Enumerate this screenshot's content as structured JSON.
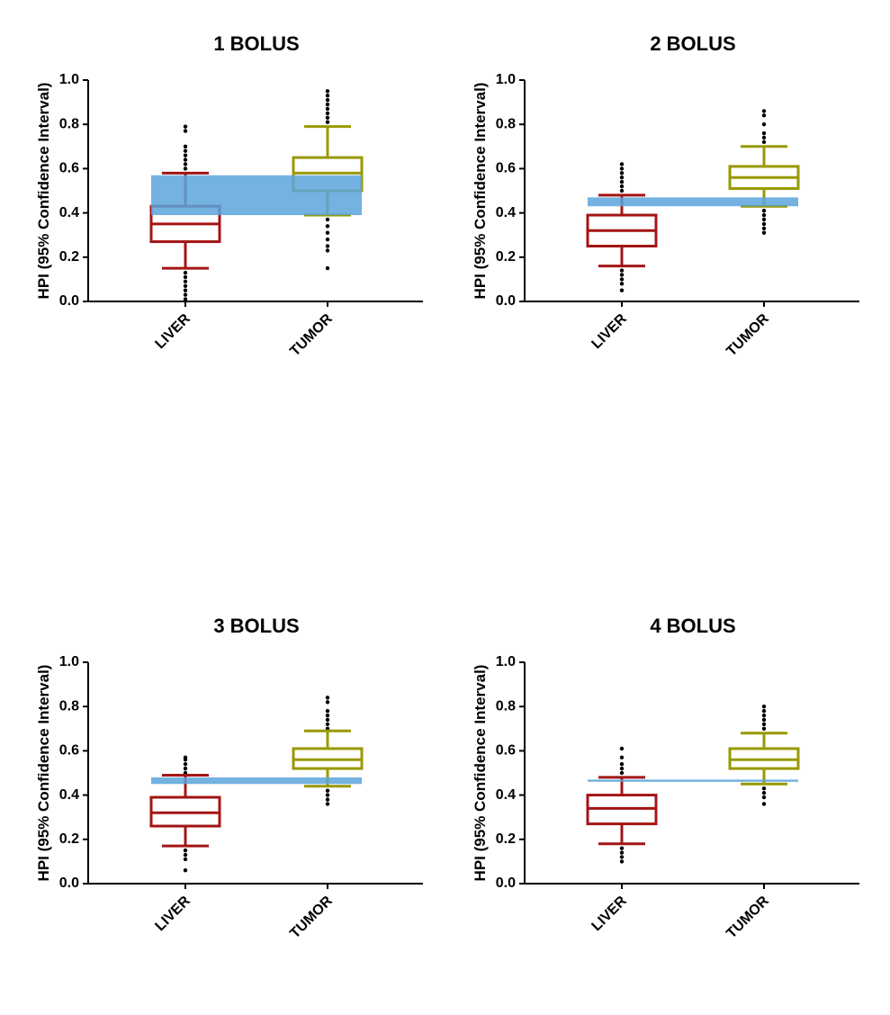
{
  "chart_data": [
    {
      "type": "box",
      "title": "1 BOLUS",
      "y_label": "HPI (95% Confidence Interval)",
      "categories": [
        "LIVER",
        "TUMOR"
      ],
      "ylim": [
        0,
        1
      ],
      "yticks": [
        {
          "value": 0,
          "label": "0.0"
        },
        {
          "value": 0.2,
          "label": "0.2"
        },
        {
          "value": 0.4,
          "label": "0.4"
        },
        {
          "value": 0.6,
          "label": "0.6"
        },
        {
          "value": 0.8,
          "label": "0.8"
        },
        {
          "value": 1,
          "label": "1.0"
        }
      ],
      "band": {
        "range": [
          0.39,
          0.57
        ],
        "color": "#5aa5dc"
      },
      "series": [
        {
          "color": "#a31515",
          "whisker_low": 0.15,
          "q1": 0.27,
          "median": 0.35,
          "q3": 0.43,
          "whisker_high": 0.58,
          "outliers": [
            0.6,
            0.62,
            0.64,
            0.66,
            0.68,
            0.7,
            0.77,
            0.79,
            0.13,
            0.11,
            0.09,
            0.07,
            0.05,
            0.03,
            0.01
          ]
        },
        {
          "color": "#999900",
          "whisker_low": 0.39,
          "q1": 0.5,
          "median": 0.58,
          "q3": 0.65,
          "whisker_high": 0.79,
          "outliers": [
            0.81,
            0.83,
            0.85,
            0.87,
            0.89,
            0.91,
            0.93,
            0.95,
            0.37,
            0.34,
            0.31,
            0.28,
            0.25,
            0.23,
            0.15
          ]
        }
      ]
    },
    {
      "type": "box",
      "title": "2 BOLUS",
      "y_label": "HPI (95% Confidence Interval)",
      "categories": [
        "LIVER",
        "TUMOR"
      ],
      "ylim": [
        0,
        1
      ],
      "yticks": [
        {
          "value": 0,
          "label": "0.0"
        },
        {
          "value": 0.2,
          "label": "0.2"
        },
        {
          "value": 0.4,
          "label": "0.4"
        },
        {
          "value": 0.6,
          "label": "0.6"
        },
        {
          "value": 0.8,
          "label": "0.8"
        },
        {
          "value": 1,
          "label": "1.0"
        }
      ],
      "band": {
        "range": [
          0.43,
          0.47
        ],
        "color": "#5aa5dc"
      },
      "series": [
        {
          "color": "#a31515",
          "whisker_low": 0.16,
          "q1": 0.25,
          "median": 0.32,
          "q3": 0.39,
          "whisker_high": 0.48,
          "outliers": [
            0.5,
            0.52,
            0.54,
            0.56,
            0.58,
            0.6,
            0.62,
            0.14,
            0.12,
            0.1,
            0.08,
            0.05
          ]
        },
        {
          "color": "#999900",
          "whisker_low": 0.43,
          "q1": 0.51,
          "median": 0.56,
          "q3": 0.61,
          "whisker_high": 0.7,
          "outliers": [
            0.72,
            0.74,
            0.76,
            0.8,
            0.84,
            0.86,
            0.41,
            0.39,
            0.37,
            0.35,
            0.33,
            0.31
          ]
        }
      ]
    },
    {
      "type": "box",
      "title": "3 BOLUS",
      "y_label": "HPI (95% Confidence Interval)",
      "categories": [
        "LIVER",
        "TUMOR"
      ],
      "ylim": [
        0,
        1
      ],
      "yticks": [
        {
          "value": 0,
          "label": "0.0"
        },
        {
          "value": 0.2,
          "label": "0.2"
        },
        {
          "value": 0.4,
          "label": "0.4"
        },
        {
          "value": 0.6,
          "label": "0.6"
        },
        {
          "value": 0.8,
          "label": "0.8"
        },
        {
          "value": 1,
          "label": "1.0"
        }
      ],
      "band": {
        "range": [
          0.45,
          0.48
        ],
        "color": "#5aa5dc"
      },
      "series": [
        {
          "color": "#a31515",
          "whisker_low": 0.17,
          "q1": 0.26,
          "median": 0.32,
          "q3": 0.39,
          "whisker_high": 0.49,
          "outliers": [
            0.5,
            0.52,
            0.54,
            0.56,
            0.57,
            0.15,
            0.13,
            0.11,
            0.06
          ]
        },
        {
          "color": "#999900",
          "whisker_low": 0.44,
          "q1": 0.52,
          "median": 0.56,
          "q3": 0.61,
          "whisker_high": 0.69,
          "outliers": [
            0.7,
            0.72,
            0.74,
            0.76,
            0.78,
            0.82,
            0.84,
            0.42,
            0.4,
            0.38,
            0.36
          ]
        }
      ]
    },
    {
      "type": "box",
      "title": "4 BOLUS",
      "y_label": "HPI (95% Confidence Interval)",
      "categories": [
        "LIVER",
        "TUMOR"
      ],
      "ylim": [
        0,
        1
      ],
      "yticks": [
        {
          "value": 0,
          "label": "0.0"
        },
        {
          "value": 0.2,
          "label": "0.2"
        },
        {
          "value": 0.4,
          "label": "0.4"
        },
        {
          "value": 0.6,
          "label": "0.6"
        },
        {
          "value": 0.8,
          "label": "0.8"
        },
        {
          "value": 1,
          "label": "1.0"
        }
      ],
      "band": {
        "range": [
          0.46,
          0.47
        ],
        "color": "#5aa5dc"
      },
      "series": [
        {
          "color": "#a31515",
          "whisker_low": 0.18,
          "q1": 0.27,
          "median": 0.34,
          "q3": 0.4,
          "whisker_high": 0.48,
          "outliers": [
            0.5,
            0.52,
            0.54,
            0.57,
            0.61,
            0.16,
            0.14,
            0.12,
            0.1
          ]
        },
        {
          "color": "#999900",
          "whisker_low": 0.45,
          "q1": 0.52,
          "median": 0.56,
          "q3": 0.61,
          "whisker_high": 0.68,
          "outliers": [
            0.7,
            0.72,
            0.74,
            0.76,
            0.78,
            0.8,
            0.43,
            0.41,
            0.39,
            0.36
          ]
        }
      ]
    }
  ]
}
